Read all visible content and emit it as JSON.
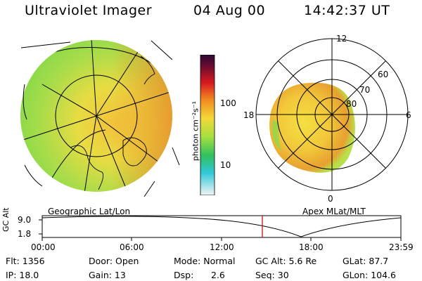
{
  "header": {
    "title": "Ultraviolet Imager",
    "date": "04 Aug 00",
    "time": "14:42:37 UT"
  },
  "colorbar": {
    "unit_label": "photon cm⁻²s⁻¹",
    "ticks": [
      "100",
      "10"
    ]
  },
  "geo_map": {
    "caption": "Geographic Lat/Lon"
  },
  "polar_plot": {
    "caption": "Apex MLat/MLT",
    "mlt_labels": {
      "top": "12",
      "left": "18",
      "right": "6",
      "bottom": "0"
    },
    "lat_labels": [
      "60",
      "70",
      "80"
    ]
  },
  "altitude_plot": {
    "ylabel": "GC Alt",
    "ytick_top": "9.0",
    "ytick_bottom": "1.8",
    "xticks": [
      "00:00",
      "06:00",
      "12:00",
      "18:00",
      "23:59"
    ]
  },
  "info": {
    "flt": "Flt: 1356",
    "door": "Door: Open",
    "mode": "Mode: Normal",
    "gc_alt": "GC Alt: 5.6 Re",
    "glat": "GLat: 87.7",
    "ip": "IP: 18.0",
    "gain": "Gain: 13",
    "dsp_label": "Dsp:",
    "dsp_value": "2.6",
    "seq": "Seq: 30",
    "glon": "GLon: 104.6"
  },
  "colors": {
    "aurora_low": "#7fd94a",
    "aurora_mid": "#e8e040",
    "aurora_high": "#f0902a",
    "marker": "#cc0000"
  }
}
